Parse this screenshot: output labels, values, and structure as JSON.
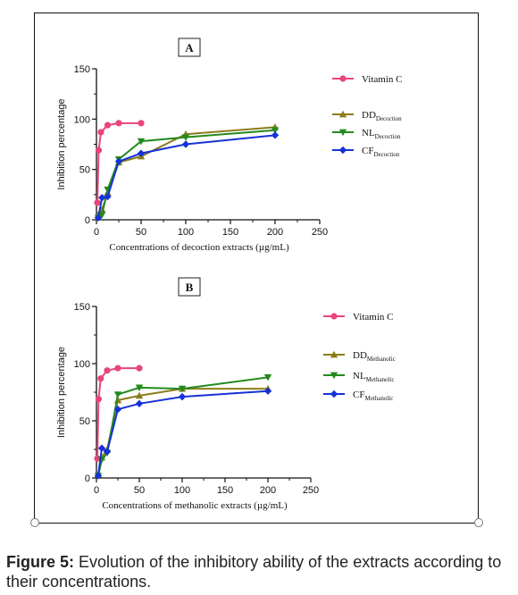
{
  "figure": {
    "caption_label": "Figure 5:",
    "caption_text": " Evolution of the inhibitory ability of the extracts according to their concentrations."
  },
  "chart_data": [
    {
      "type": "line",
      "panel_label": "A",
      "xlabel": "Concentrations of decoction extracts (µg/mL)",
      "ylabel": "Inhibition percentage",
      "xlim": [
        0,
        250
      ],
      "ylim": [
        0,
        150
      ],
      "xticks": [
        "0",
        "50",
        "100",
        "150",
        "200",
        "250"
      ],
      "yticks": [
        "0",
        "50",
        "100",
        "150"
      ],
      "legend_position": "right",
      "series": [
        {
          "name": "Vitamin C",
          "name_main": "Vitamin C",
          "name_sub": "",
          "color": "#e8457a",
          "marker": "circle",
          "x": [
            1,
            2.5,
            5,
            12.5,
            25,
            50
          ],
          "y": [
            17,
            69,
            87,
            94,
            96,
            96
          ]
        },
        {
          "name": "DDDecoction",
          "name_main": "DD",
          "name_sub": "Decoction",
          "color": "#8b7d1c",
          "marker": "triangle-up",
          "x": [
            2,
            6.25,
            12.5,
            25,
            50,
            100,
            200
          ],
          "y": [
            5,
            10,
            27,
            57,
            63,
            85,
            92
          ]
        },
        {
          "name": "NLDecoction",
          "name_main": "NL",
          "name_sub": "Decoction",
          "color": "#238a1e",
          "marker": "triangle-down",
          "x": [
            2,
            6.25,
            12.5,
            25,
            50,
            100,
            200
          ],
          "y": [
            2,
            5,
            30,
            60,
            78,
            82,
            89
          ]
        },
        {
          "name": "CFDecoction",
          "name_main": "CF",
          "name_sub": "Decoction",
          "color": "#1632d6",
          "marker": "diamond",
          "x": [
            2,
            6.25,
            12.5,
            25,
            50,
            100,
            200
          ],
          "y": [
            2,
            22,
            23,
            58,
            66,
            75,
            84
          ]
        }
      ]
    },
    {
      "type": "line",
      "panel_label": "B",
      "xlabel": "Concentrations of methanolic extracts (µg/mL)",
      "ylabel": "Inhibition percentage",
      "xlim": [
        0,
        250
      ],
      "ylim": [
        0,
        150
      ],
      "xticks": [
        "0",
        "50",
        "100",
        "150",
        "200",
        "250"
      ],
      "yticks": [
        "0",
        "50",
        "100",
        "150"
      ],
      "legend_position": "right",
      "series": [
        {
          "name": "Vitamin C",
          "name_main": "Vitamin C",
          "name_sub": "",
          "color": "#e8457a",
          "marker": "circle",
          "x": [
            1,
            2.5,
            5,
            12.5,
            25,
            50
          ],
          "y": [
            17,
            69,
            87,
            94,
            96,
            96
          ]
        },
        {
          "name": "DDMethanolic",
          "name_main": "DD",
          "name_sub": "Methanolic",
          "color": "#8b7d1c",
          "marker": "triangle-up",
          "x": [
            2,
            6.25,
            12.5,
            25,
            50,
            100,
            200
          ],
          "y": [
            3,
            18,
            25,
            68,
            72,
            78,
            78
          ]
        },
        {
          "name": "NLMethanolic",
          "name_main": "NL",
          "name_sub": "Methanolic",
          "color": "#238a1e",
          "marker": "triangle-down",
          "x": [
            2,
            6.25,
            12.5,
            25,
            50,
            100,
            200
          ],
          "y": [
            2,
            16,
            22,
            73,
            79,
            78,
            88
          ]
        },
        {
          "name": "CFMethanolic",
          "name_main": "CF",
          "name_sub": "Methanolic",
          "color": "#1632d6",
          "marker": "diamond",
          "x": [
            2,
            6.25,
            12.5,
            25,
            50,
            100,
            200
          ],
          "y": [
            2,
            26,
            23,
            60,
            65,
            71,
            76
          ]
        }
      ]
    }
  ]
}
